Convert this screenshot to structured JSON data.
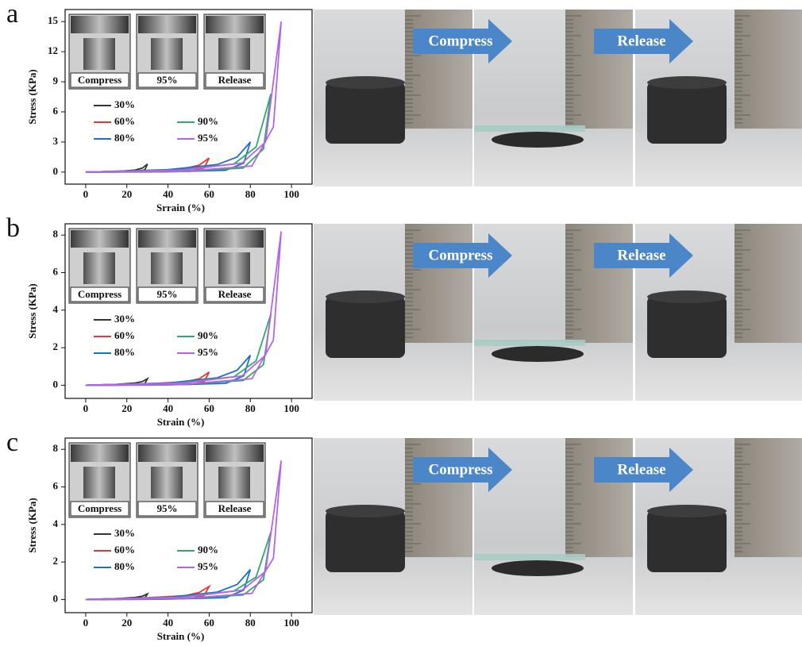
{
  "panel_labels": [
    "a",
    "b",
    "c"
  ],
  "photo_labels": [
    [
      "Compress",
      "Release"
    ],
    [
      "Compress",
      "Release"
    ],
    [
      "Compress",
      "Release"
    ]
  ],
  "chart_data": [
    {
      "type": "line",
      "xlabel": "Srrain (%)",
      "ylabel": "Stress (KPa)",
      "inset_labels": [
        "Compress",
        "95%",
        "Release"
      ],
      "xlim": [
        -10,
        110
      ],
      "xticks": [
        0,
        20,
        40,
        60,
        80,
        100
      ],
      "ylim": [
        -1.2,
        16.2
      ],
      "yticks": [
        0,
        3,
        6,
        9,
        12,
        15
      ],
      "series": [
        {
          "name": "30%",
          "color": "#333333",
          "x": [
            0,
            15,
            24,
            27.6,
            30,
            28.8,
            25.5,
            15,
            0
          ],
          "values": [
            0,
            0.06,
            0.2,
            0.4,
            0.8,
            0.24,
            0.05,
            0.01,
            0
          ]
        },
        {
          "name": "60%",
          "color": "#e53935",
          "x": [
            0,
            30,
            48,
            55.2,
            60,
            57.6,
            51,
            30,
            0
          ],
          "values": [
            0,
            0.11,
            0.35,
            0.7,
            1.4,
            0.42,
            0.08,
            0.01,
            0
          ]
        },
        {
          "name": "80%",
          "color": "#1e6fc8",
          "x": [
            0,
            40,
            64,
            73.6,
            80,
            76.8,
            68,
            40,
            0
          ],
          "values": [
            0,
            0.24,
            0.75,
            1.5,
            3,
            0.9,
            0.18,
            0.03,
            0
          ]
        },
        {
          "name": "90%",
          "color": "#2eaa6a",
          "x": [
            0,
            45,
            72,
            82.8,
            90,
            86.4,
            76.5,
            45,
            0
          ],
          "values": [
            0,
            0.2,
            0.8,
            2.5,
            7.8,
            2.3,
            0.4,
            0.05,
            0
          ]
        },
        {
          "name": "95%",
          "color": "#b464e6",
          "x": [
            0,
            47.5,
            76,
            87.4,
            95,
            91.2,
            80.8,
            47.5,
            0
          ],
          "values": [
            0,
            0.2,
            0.9,
            3,
            15,
            4.5,
            0.6,
            0.08,
            0
          ]
        }
      ]
    },
    {
      "type": "line",
      "xlabel": "Strain (%)",
      "ylabel": "Stress (KPa)",
      "inset_labels": [
        "Compress",
        "95%",
        "Release"
      ],
      "xlim": [
        -10,
        110
      ],
      "xticks": [
        0,
        20,
        40,
        60,
        80,
        100
      ],
      "ylim": [
        -0.7,
        8.6
      ],
      "yticks": [
        0,
        2,
        4,
        6,
        8
      ],
      "series": [
        {
          "name": "30%",
          "color": "#333333",
          "x": [
            0,
            15,
            24,
            27.6,
            30,
            28.8,
            25.5,
            15,
            0
          ],
          "values": [
            0,
            0.05,
            0.12,
            0.2,
            0.35,
            0.1,
            0.03,
            0.01,
            0
          ]
        },
        {
          "name": "60%",
          "color": "#e53935",
          "x": [
            0,
            30,
            48,
            55.2,
            60,
            57.6,
            51,
            30,
            0
          ],
          "values": [
            0,
            0.08,
            0.18,
            0.35,
            0.7,
            0.2,
            0.05,
            0.01,
            0
          ]
        },
        {
          "name": "80%",
          "color": "#1e6fc8",
          "x": [
            0,
            40,
            64,
            73.6,
            80,
            76.8,
            68,
            40,
            0
          ],
          "values": [
            0,
            0.12,
            0.4,
            0.8,
            1.6,
            0.5,
            0.1,
            0.02,
            0
          ]
        },
        {
          "name": "90%",
          "color": "#2eaa6a",
          "x": [
            0,
            45,
            72,
            82.8,
            90,
            86.4,
            76.5,
            45,
            0
          ],
          "values": [
            0,
            0.12,
            0.45,
            1.3,
            3.8,
            1.1,
            0.25,
            0.04,
            0
          ]
        },
        {
          "name": "95%",
          "color": "#b464e6",
          "x": [
            0,
            47.5,
            76,
            87.4,
            95,
            91.2,
            80.8,
            47.5,
            0
          ],
          "values": [
            0,
            0.12,
            0.5,
            1.6,
            8.2,
            2.4,
            0.35,
            0.05,
            0
          ]
        }
      ]
    },
    {
      "type": "line",
      "xlabel": "Strain (%)",
      "ylabel": "Stress (KPa)",
      "inset_labels": [
        "Compress",
        "95%",
        "Release"
      ],
      "xlim": [
        -10,
        110
      ],
      "xticks": [
        0,
        20,
        40,
        60,
        80,
        100
      ],
      "ylim": [
        -0.7,
        8.6
      ],
      "yticks": [
        0,
        2,
        4,
        6,
        8
      ],
      "series": [
        {
          "name": "30%",
          "color": "#333333",
          "x": [
            0,
            15,
            24,
            27.6,
            30,
            28.8,
            25.5,
            15,
            0
          ],
          "values": [
            0,
            0.05,
            0.11,
            0.18,
            0.3,
            0.09,
            0.03,
            0.01,
            0
          ]
        },
        {
          "name": "60%",
          "color": "#e53935",
          "x": [
            0,
            30,
            48,
            55.2,
            60,
            57.6,
            51,
            30,
            0
          ],
          "values": [
            0,
            0.1,
            0.2,
            0.38,
            0.7,
            0.22,
            0.06,
            0.01,
            0
          ]
        },
        {
          "name": "80%",
          "color": "#1e6fc8",
          "x": [
            0,
            40,
            64,
            73.6,
            80,
            76.8,
            68,
            40,
            0
          ],
          "values": [
            0,
            0.12,
            0.4,
            0.8,
            1.6,
            0.5,
            0.1,
            0.02,
            0
          ]
        },
        {
          "name": "90%",
          "color": "#2eaa6a",
          "x": [
            0,
            45,
            72,
            82.8,
            90,
            86.4,
            76.5,
            45,
            0
          ],
          "values": [
            0,
            0.12,
            0.45,
            1.2,
            3.6,
            1.05,
            0.24,
            0.04,
            0
          ]
        },
        {
          "name": "95%",
          "color": "#b464e6",
          "x": [
            0,
            47.5,
            76,
            87.4,
            95,
            91.2,
            80.8,
            47.5,
            0
          ],
          "values": [
            0,
            0.12,
            0.5,
            1.5,
            7.4,
            2.2,
            0.33,
            0.05,
            0
          ]
        }
      ]
    }
  ]
}
